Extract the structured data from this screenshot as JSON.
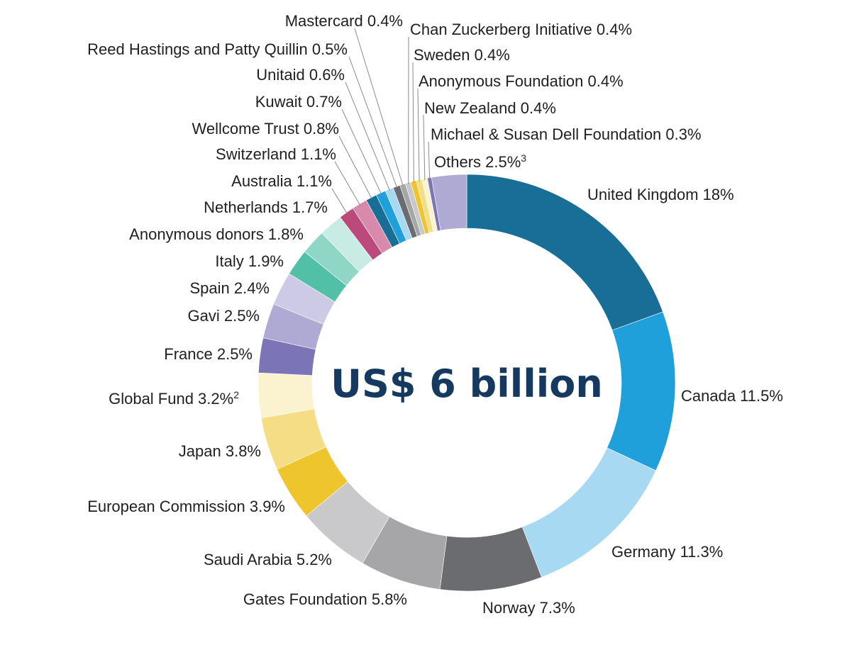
{
  "chart_data": {
    "type": "pie",
    "variant": "donut",
    "center_label": "US$ 6 billion",
    "slices": [
      {
        "name": "United Kingdom",
        "label": "United Kingdom 18%",
        "value": 18,
        "color": "#186e96"
      },
      {
        "name": "Canada",
        "label": "Canada 11.5%",
        "value": 11.5,
        "color": "#1fa0db"
      },
      {
        "name": "Germany",
        "label": "Germany 11.3%",
        "value": 11.3,
        "color": "#a8d9f2"
      },
      {
        "name": "Norway",
        "label": "Norway 7.3%",
        "value": 7.3,
        "color": "#6b6c70"
      },
      {
        "name": "Gates Foundation",
        "label": "Gates Foundation 5.8%",
        "value": 5.8,
        "color": "#a6a6a8"
      },
      {
        "name": "Saudi Arabia",
        "label": "Saudi Arabia 5.2%",
        "value": 5.2,
        "color": "#c9c9cb"
      },
      {
        "name": "European Commission",
        "label": "European Commission 3.9%",
        "value": 3.9,
        "color": "#efc52e"
      },
      {
        "name": "Japan",
        "label": "Japan 3.8%",
        "value": 3.8,
        "color": "#f4dd84"
      },
      {
        "name": "Global Fund",
        "label": "Global Fund 3.2%",
        "sup": "2",
        "value": 3.2,
        "color": "#fbf3cf"
      },
      {
        "name": "France",
        "label": "France 2.5%",
        "value": 2.5,
        "color": "#7b74b6"
      },
      {
        "name": "Gavi",
        "label": "Gavi 2.5%",
        "value": 2.5,
        "color": "#aeaad4"
      },
      {
        "name": "Spain",
        "label": "Spain 2.4%",
        "value": 2.4,
        "color": "#cdcae5"
      },
      {
        "name": "Italy",
        "label": "Italy 1.9%",
        "value": 1.9,
        "color": "#52c0a7"
      },
      {
        "name": "Anonymous donors",
        "label": "Anonymous donors 1.8%",
        "value": 1.8,
        "color": "#90d6c6"
      },
      {
        "name": "Netherlands",
        "label": "Netherlands 1.7%",
        "value": 1.7,
        "color": "#c8ebe3"
      },
      {
        "name": "Australia",
        "label": "Australia 1.1%",
        "value": 1.1,
        "color": "#bc497c"
      },
      {
        "name": "Switzerland",
        "label": "Switzerland 1.1%",
        "value": 1.1,
        "color": "#d88aad"
      },
      {
        "name": "Wellcome Trust",
        "label": "Wellcome Trust 0.8%",
        "value": 0.8,
        "color": "#186e96"
      },
      {
        "name": "Kuwait",
        "label": "Kuwait 0.7%",
        "value": 0.7,
        "color": "#1fa0db"
      },
      {
        "name": "Unitaid",
        "label": "Unitaid 0.6%",
        "value": 0.6,
        "color": "#a8d9f2"
      },
      {
        "name": "Reed Hastings and Patty Quillin",
        "label": "Reed Hastings and Patty Quillin 0.5%",
        "value": 0.5,
        "color": "#6b6c70"
      },
      {
        "name": "Mastercard",
        "label": "Mastercard 0.4%",
        "value": 0.4,
        "color": "#a6a6a8"
      },
      {
        "name": "Chan Zuckerberg Initiative",
        "label": "Chan Zuckerberg Initiative 0.4%",
        "value": 0.4,
        "color": "#c9c9cb"
      },
      {
        "name": "Sweden",
        "label": "Sweden 0.4%",
        "value": 0.4,
        "color": "#efc52e"
      },
      {
        "name": "Anonymous Foundation",
        "label": "Anonymous Foundation 0.4%",
        "value": 0.4,
        "color": "#f4dd84"
      },
      {
        "name": "New Zealand",
        "label": "New Zealand 0.4%",
        "value": 0.4,
        "color": "#fbf3cf"
      },
      {
        "name": "Michael & Susan Dell Foundation",
        "label": "Michael & Susan Dell Foundation 0.3%",
        "value": 0.3,
        "color": "#7b74b6"
      },
      {
        "name": "Others",
        "label": "Others 2.5%",
        "sup": "3",
        "value": 2.5,
        "color": "#aeaad4"
      }
    ]
  }
}
